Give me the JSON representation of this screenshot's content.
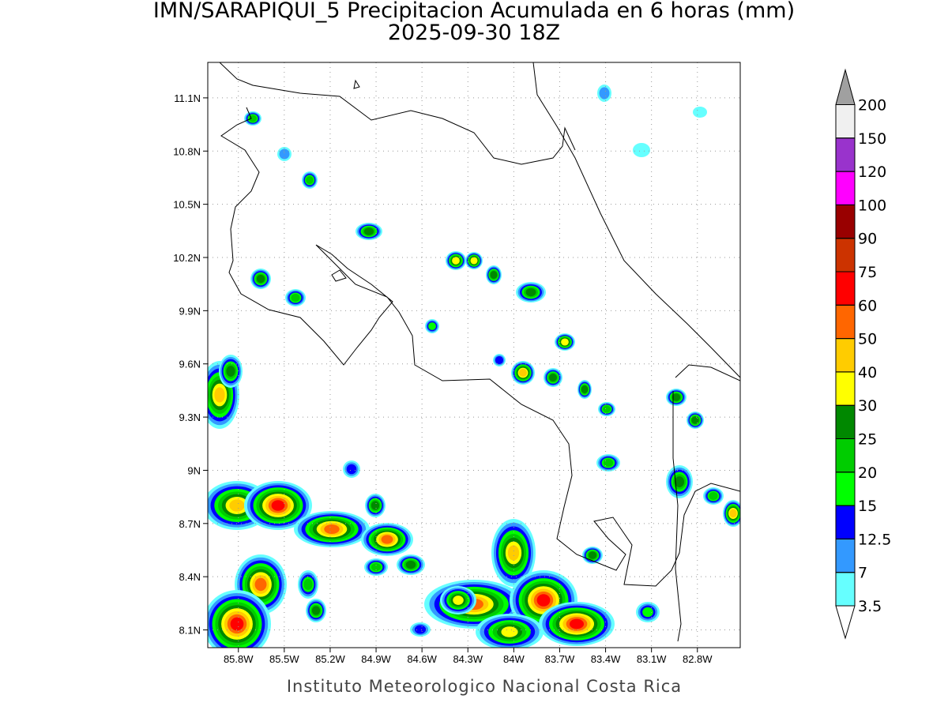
{
  "title": "IMN/SARAPIQUI_5 Precipitacion Acumulada en 6 horas (mm)",
  "subtitle": "2025-09-30 18Z",
  "footer": "Instituto Meteorologico Nacional Costa Rica",
  "map": {
    "lon_range": [
      -86.0,
      -82.52
    ],
    "lat_range": [
      8.0,
      11.3
    ],
    "lon_ticks": [
      {
        "value": -85.8,
        "label": "85.8W"
      },
      {
        "value": -85.5,
        "label": "85.5W"
      },
      {
        "value": -85.2,
        "label": "85.2W"
      },
      {
        "value": -84.9,
        "label": "84.9W"
      },
      {
        "value": -84.6,
        "label": "84.6W"
      },
      {
        "value": -84.3,
        "label": "84.3W"
      },
      {
        "value": -84.0,
        "label": "84W"
      },
      {
        "value": -83.7,
        "label": "83.7W"
      },
      {
        "value": -83.4,
        "label": "83.4W"
      },
      {
        "value": -83.1,
        "label": "83.1W"
      },
      {
        "value": -82.8,
        "label": "82.8W"
      }
    ],
    "lat_ticks": [
      {
        "value": 8.1,
        "label": "8.1N"
      },
      {
        "value": 8.4,
        "label": "8.4N"
      },
      {
        "value": 8.7,
        "label": "8.7N"
      },
      {
        "value": 9.0,
        "label": "9N"
      },
      {
        "value": 9.3,
        "label": "9.3N"
      },
      {
        "value": 9.6,
        "label": "9.6N"
      },
      {
        "value": 9.9,
        "label": "9.9N"
      },
      {
        "value": 10.2,
        "label": "10.2N"
      },
      {
        "value": 10.5,
        "label": "10.5N"
      },
      {
        "value": 10.8,
        "label": "10.8N"
      },
      {
        "value": 11.1,
        "label": "11.1N"
      }
    ]
  },
  "colorbar": {
    "levels": [
      3.5,
      7,
      12.5,
      15,
      20,
      25,
      30,
      40,
      50,
      60,
      75,
      90,
      100,
      120,
      150,
      200
    ],
    "colors": [
      "#66ffff",
      "#3399ff",
      "#0000ff",
      "#00ff00",
      "#00cc00",
      "#008800",
      "#ffff00",
      "#ffcc00",
      "#ff6600",
      "#ff0000",
      "#cc3300",
      "#990000",
      "#ff00ff",
      "#9933cc",
      "#f0f0f0"
    ],
    "under_color": "#ffffff",
    "over_color": "#a0a0a0"
  }
}
